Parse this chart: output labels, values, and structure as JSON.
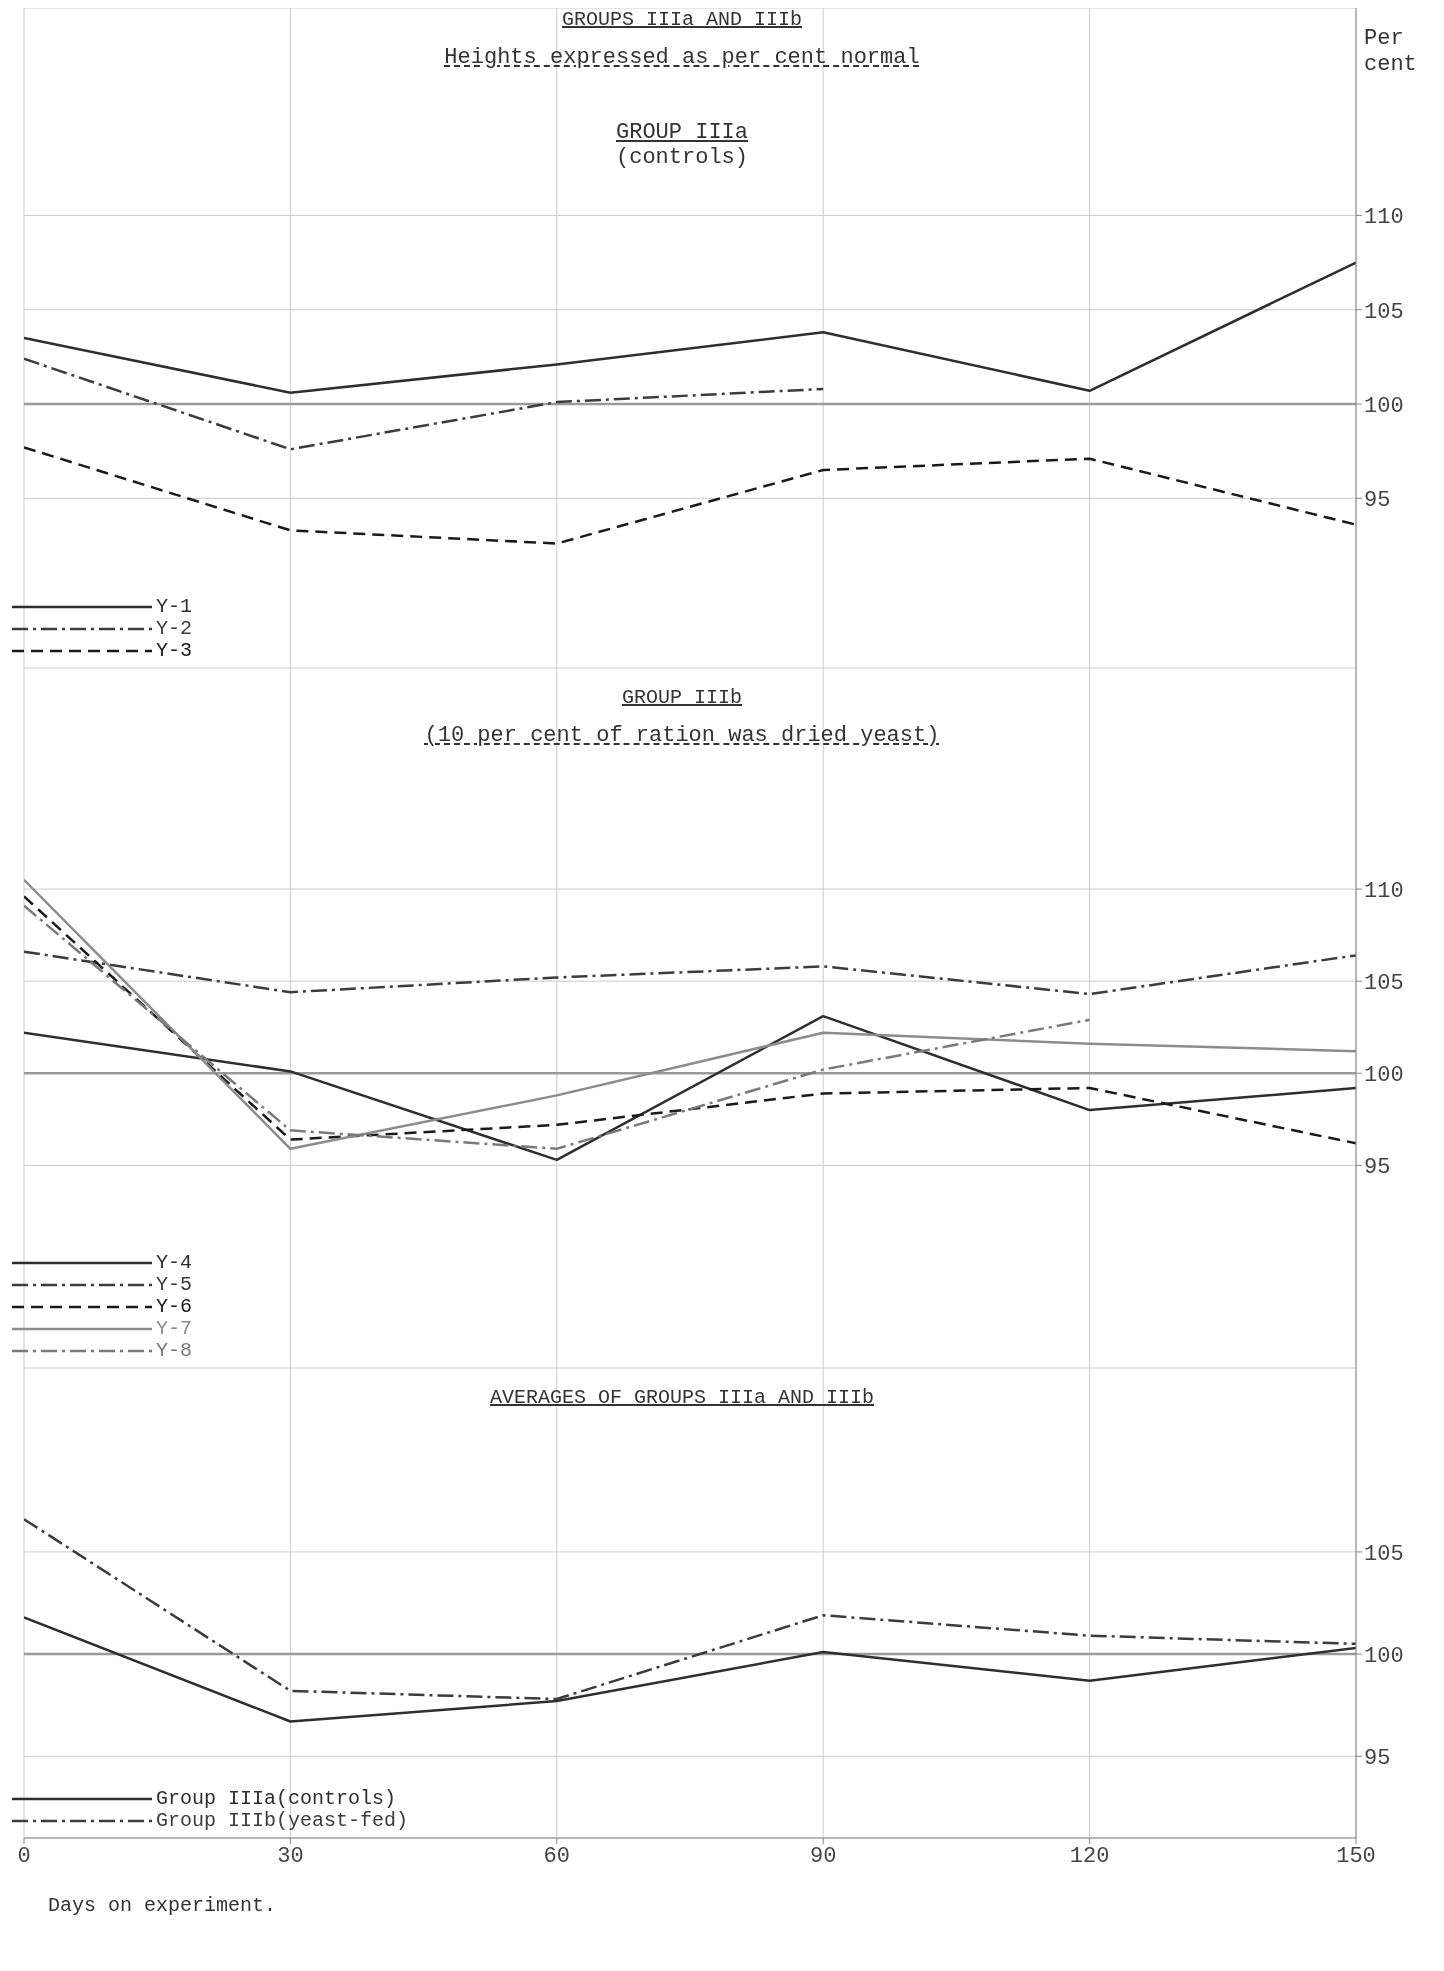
{
  "chart_data": [
    {
      "type": "line",
      "title": "GROUPS IIIa AND IIIb",
      "subtitle": "Heights expressed as per cent normal",
      "annotations": [
        "GROUP IIIa",
        "(controls)"
      ],
      "ylabel": "Per cent",
      "x": [
        0,
        30,
        60,
        90,
        120,
        150
      ],
      "xlim": [
        0,
        150
      ],
      "xticks": [
        0,
        30,
        60,
        90,
        120,
        150
      ],
      "ylim": [
        86,
        121
      ],
      "yticks": [
        95,
        100,
        105,
        110
      ],
      "tick_labels": "y",
      "grid": true,
      "legend": "bottom left",
      "marker": "none",
      "ref_lines": [
        {
          "axis": "y",
          "value": 100,
          "color": "#9a9a9a"
        }
      ],
      "series": [
        {
          "name": "Y-1",
          "color": "#2e2e2e",
          "line_style": "solid",
          "values": [
            103.5,
            100.6,
            102.1,
            103.8,
            100.7,
            107.5
          ]
        },
        {
          "name": "Y-2",
          "color": "#3c3c3c",
          "line_style": "dashdot",
          "values": [
            102.4,
            97.6,
            100.1,
            100.8,
            null,
            null
          ]
        },
        {
          "name": "Y-3",
          "color": "#1a1a1a",
          "line_style": "dashed",
          "values": [
            97.7,
            93.3,
            92.6,
            96.5,
            97.1,
            93.6
          ]
        }
      ]
    },
    {
      "type": "line",
      "title": "GROUP IIIb",
      "subtitle": "(10 per cent of ration was dried yeast)",
      "x": [
        0,
        30,
        60,
        90,
        120,
        150
      ],
      "xlim": [
        0,
        150
      ],
      "xticks": [
        0,
        30,
        60,
        90,
        120,
        150
      ],
      "ylim": [
        84,
        122
      ],
      "yticks": [
        95,
        100,
        105,
        110
      ],
      "tick_labels": "y",
      "grid": true,
      "legend": "bottom left",
      "marker": "none",
      "ref_lines": [
        {
          "axis": "y",
          "value": 100,
          "color": "#9a9a9a"
        }
      ],
      "series": [
        {
          "name": "Y-4",
          "color": "#2e2e2e",
          "line_style": "solid",
          "values": [
            102.2,
            100.1,
            95.3,
            103.1,
            98.0,
            99.2
          ]
        },
        {
          "name": "Y-5",
          "color": "#3c3c3c",
          "line_style": "dashdot",
          "values": [
            106.6,
            104.4,
            105.2,
            105.8,
            104.3,
            106.4
          ]
        },
        {
          "name": "Y-6",
          "color": "#1a1a1a",
          "line_style": "dashed",
          "values": [
            109.6,
            96.4,
            97.2,
            98.9,
            99.2,
            96.2
          ]
        },
        {
          "name": "Y-7",
          "color": "#8c8c8c",
          "line_style": "solid",
          "values": [
            110.5,
            95.9,
            98.8,
            102.2,
            101.6,
            101.2
          ]
        },
        {
          "name": "Y-8",
          "color": "#7a7a7a",
          "line_style": "dashdot",
          "values": [
            109.1,
            96.9,
            95.9,
            100.2,
            102.9,
            null
          ]
        }
      ]
    },
    {
      "type": "line",
      "title": "AVERAGES OF GROUPS IIIa AND IIIb",
      "xlabel": "Days on experiment.",
      "x": [
        0,
        30,
        60,
        90,
        120,
        150
      ],
      "xlim": [
        0,
        150
      ],
      "xticks": [
        0,
        30,
        60,
        90,
        120,
        150
      ],
      "ylim": [
        91,
        114
      ],
      "yticks": [
        95,
        100,
        105
      ],
      "grid": true,
      "legend": "bottom left",
      "marker": "none",
      "ref_lines": [
        {
          "axis": "y",
          "value": 100,
          "color": "#9a9a9a"
        }
      ],
      "series": [
        {
          "name": "Group IIIa(controls)",
          "color": "#2e2e2e",
          "line_style": "solid",
          "values": [
            101.8,
            96.7,
            97.7,
            100.1,
            98.7,
            100.3
          ]
        },
        {
          "name": "Group IIIb(yeast-fed)",
          "color": "#3c3c3c",
          "line_style": "dashdot",
          "values": [
            106.6,
            98.2,
            97.8,
            101.9,
            100.9,
            100.5
          ]
        }
      ]
    }
  ]
}
